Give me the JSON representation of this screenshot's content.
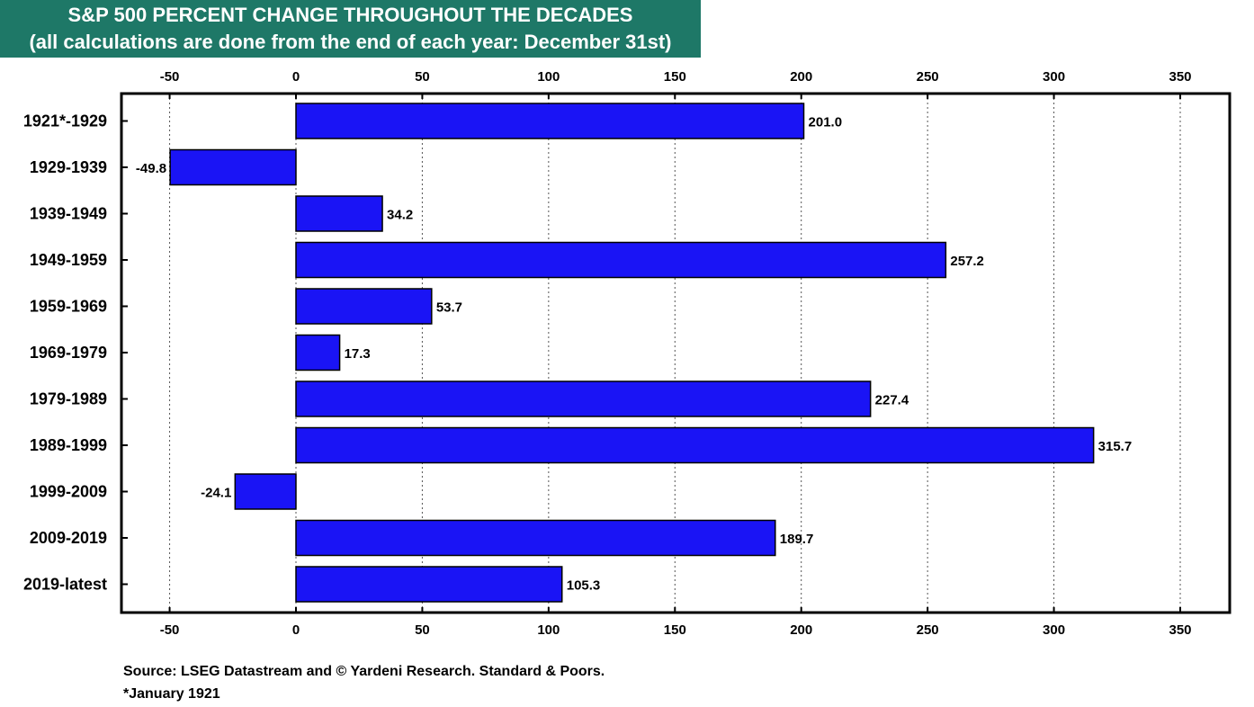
{
  "title": {
    "line1": "S&P 500 PERCENT CHANGE THROUGHOUT THE DECADES",
    "line2": "(all calculations are done from the end of each year: December 31st)"
  },
  "colors": {
    "title_bg": "#1e7867",
    "bar_fill": "#1a14f5",
    "bar_stroke": "#000000"
  },
  "chart_data": {
    "type": "bar",
    "orientation": "horizontal",
    "categories": [
      "1921*-1929",
      "1929-1939",
      "1939-1949",
      "1949-1959",
      "1959-1969",
      "1969-1979",
      "1979-1989",
      "1989-1999",
      "1999-2009",
      "2009-2019",
      "2019-latest"
    ],
    "values": [
      201.0,
      -49.8,
      34.2,
      257.2,
      53.7,
      17.3,
      227.4,
      315.7,
      -24.1,
      189.7,
      105.3
    ],
    "value_labels": [
      "201.0",
      "-49.8",
      "34.2",
      "257.2",
      "53.7",
      "17.3",
      "227.4",
      "315.7",
      "-24.1",
      "189.7",
      "105.3"
    ],
    "xlim": [
      -68,
      368
    ],
    "xticks": [
      -50,
      0,
      50,
      100,
      150,
      200,
      250,
      300,
      350
    ],
    "xtick_labels": [
      "-50",
      "0",
      "50",
      "100",
      "150",
      "200",
      "250",
      "300",
      "350"
    ],
    "axis_labels_top_and_bottom": true,
    "grid": "vertical dotted",
    "legend": "none"
  },
  "footer": {
    "source": "Source: LSEG Datastream and © Yardeni Research. Standard & Poors.",
    "note": "*January 1921"
  }
}
